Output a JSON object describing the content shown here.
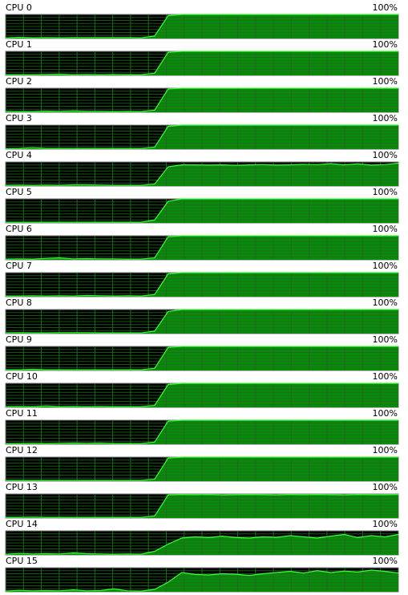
{
  "panels": [
    {
      "label": "CPU 0",
      "max_label": "100%",
      "values": [
        2,
        5,
        3,
        4,
        3,
        4,
        4,
        4,
        4,
        4,
        3,
        10,
        95,
        100,
        100,
        100,
        100,
        100,
        100,
        100,
        100,
        100,
        100,
        100,
        100,
        100,
        100,
        100,
        100,
        100
      ]
    },
    {
      "label": "CPU 1",
      "max_label": "100%",
      "values": [
        3,
        3,
        3,
        4,
        5,
        3,
        4,
        3,
        4,
        3,
        3,
        9,
        96,
        100,
        100,
        100,
        100,
        100,
        100,
        100,
        100,
        100,
        100,
        100,
        100,
        100,
        100,
        100,
        100,
        100
      ]
    },
    {
      "label": "CPU 2",
      "max_label": "100%",
      "values": [
        4,
        3,
        3,
        5,
        4,
        6,
        4,
        4,
        3,
        4,
        3,
        9,
        97,
        100,
        100,
        100,
        100,
        100,
        100,
        100,
        100,
        100,
        100,
        100,
        100,
        100,
        100,
        100,
        100,
        100
      ]
    },
    {
      "label": "CPU 3",
      "max_label": "100%",
      "values": [
        2,
        3,
        6,
        3,
        3,
        3,
        3,
        3,
        3,
        3,
        3,
        8,
        95,
        100,
        100,
        100,
        100,
        100,
        100,
        100,
        100,
        100,
        100,
        100,
        100,
        100,
        100,
        100,
        100,
        100
      ]
    },
    {
      "label": "CPU 4",
      "max_label": "100%",
      "values": [
        3,
        4,
        3,
        4,
        3,
        5,
        5,
        4,
        3,
        3,
        3,
        8,
        80,
        88,
        88,
        87,
        88,
        86,
        88,
        89,
        87,
        88,
        90,
        89,
        93,
        88,
        92,
        87,
        89,
        95
      ]
    },
    {
      "label": "CPU 5",
      "max_label": "100%",
      "values": [
        3,
        3,
        3,
        3,
        3,
        3,
        3,
        3,
        3,
        3,
        3,
        12,
        90,
        100,
        100,
        100,
        100,
        100,
        100,
        100,
        100,
        100,
        100,
        100,
        100,
        100,
        100,
        100,
        100,
        100
      ]
    },
    {
      "label": "CPU 6",
      "max_label": "100%",
      "values": [
        3,
        4,
        3,
        6,
        8,
        4,
        5,
        4,
        4,
        3,
        3,
        8,
        96,
        100,
        100,
        100,
        100,
        100,
        100,
        100,
        100,
        100,
        100,
        100,
        100,
        100,
        100,
        100,
        100,
        100
      ]
    },
    {
      "label": "CPU 7",
      "max_label": "100%",
      "values": [
        3,
        3,
        4,
        3,
        4,
        3,
        5,
        4,
        3,
        4,
        3,
        9,
        95,
        100,
        100,
        100,
        100,
        100,
        100,
        100,
        100,
        100,
        100,
        100,
        100,
        100,
        100,
        100,
        100,
        100
      ]
    },
    {
      "label": "CPU 8",
      "max_label": "100%",
      "values": [
        3,
        4,
        3,
        3,
        4,
        4,
        4,
        3,
        3,
        3,
        3,
        10,
        92,
        100,
        100,
        100,
        100,
        100,
        100,
        100,
        100,
        100,
        100,
        100,
        100,
        100,
        100,
        100,
        100,
        100
      ]
    },
    {
      "label": "CPU 9",
      "max_label": "100%",
      "values": [
        3,
        3,
        5,
        3,
        3,
        3,
        3,
        3,
        3,
        3,
        3,
        9,
        96,
        100,
        100,
        100,
        100,
        100,
        100,
        100,
        100,
        100,
        100,
        100,
        100,
        100,
        100,
        100,
        100,
        100
      ]
    },
    {
      "label": "CPU 10",
      "max_label": "100%",
      "values": [
        3,
        4,
        3,
        6,
        3,
        4,
        3,
        4,
        3,
        3,
        3,
        8,
        95,
        100,
        100,
        100,
        100,
        100,
        100,
        100,
        100,
        100,
        100,
        100,
        100,
        100,
        100,
        100,
        100,
        100
      ]
    },
    {
      "label": "CPU 11",
      "max_label": "100%",
      "values": [
        3,
        3,
        4,
        3,
        4,
        5,
        4,
        5,
        3,
        3,
        3,
        9,
        96,
        100,
        100,
        100,
        100,
        100,
        100,
        100,
        100,
        100,
        100,
        100,
        100,
        100,
        100,
        100,
        100,
        100
      ]
    },
    {
      "label": "CPU 12",
      "max_label": "100%",
      "values": [
        3,
        3,
        3,
        3,
        3,
        3,
        3,
        3,
        3,
        3,
        3,
        8,
        96,
        100,
        100,
        100,
        100,
        100,
        100,
        100,
        100,
        100,
        100,
        100,
        100,
        100,
        100,
        100,
        100,
        100
      ]
    },
    {
      "label": "CPU 13",
      "max_label": "100%",
      "values": [
        3,
        3,
        4,
        3,
        3,
        3,
        3,
        3,
        3,
        3,
        3,
        8,
        96,
        98,
        97,
        98,
        96,
        97,
        98,
        97,
        96,
        98,
        97,
        98,
        97,
        96,
        98,
        97,
        97,
        98
      ]
    },
    {
      "label": "CPU 14",
      "max_label": "100%",
      "values": [
        3,
        6,
        4,
        5,
        4,
        8,
        5,
        4,
        3,
        4,
        3,
        15,
        45,
        70,
        75,
        72,
        78,
        72,
        70,
        75,
        73,
        80,
        75,
        70,
        78,
        85,
        72,
        80,
        75,
        85
      ]
    },
    {
      "label": "CPU 15",
      "max_label": "100%",
      "values": [
        3,
        6,
        4,
        5,
        4,
        8,
        4,
        5,
        12,
        4,
        3,
        10,
        40,
        80,
        72,
        70,
        75,
        73,
        68,
        75,
        80,
        85,
        78,
        88,
        80,
        86,
        82,
        90,
        85,
        78
      ]
    }
  ],
  "ylim": [
    0,
    100
  ]
}
